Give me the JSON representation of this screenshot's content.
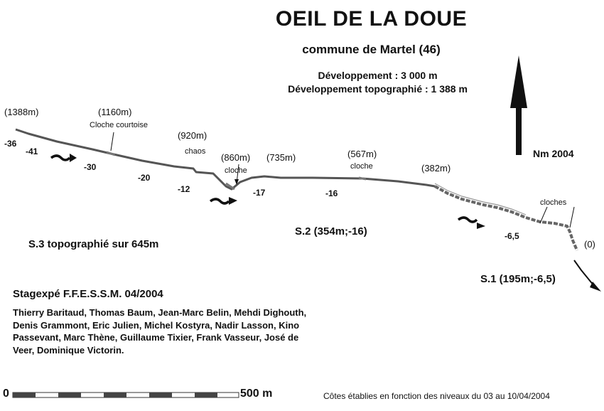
{
  "title": "OEIL DE LA DOUE",
  "subtitle": "commune de Martel (46)",
  "stats": {
    "line1": "Développement : 3 000 m",
    "line2": "Développement topographié : 1 388 m"
  },
  "north_label": "Nm 2004",
  "distances": [
    "(1388m)",
    "(1160m)",
    "(920m)",
    "(860m)",
    "(735m)",
    "(567m)",
    "(382m)",
    "(0)"
  ],
  "notes": {
    "cloche_courtoise": "Cloche courtoise",
    "chaos": "chaos",
    "cloche_860": "cloche",
    "cloche_567": "cloche",
    "cloches": "cloches"
  },
  "depths": [
    "-36",
    "-41",
    "-30",
    "-20",
    "-12",
    "-17",
    "-16",
    "-6,5"
  ],
  "sumps": {
    "s3": "S.3 topographié sur 645m",
    "s2": "S.2 (354m;-16)",
    "s1": "S.1 (195m;-6,5)"
  },
  "team": {
    "title": "Stagexpé F.F.E.S.S.M. 04/2004",
    "members": "Thierry Baritaud, Thomas Baum, Jean-Marc Belin, Mehdi Dighouth, Denis Grammont, Eric Julien, Michel Kostyra, Nadir Lasson, Kino Passevant, Marc Thène, Guillaume Tixier, Frank Vasseur, José de Veer, Dominique Victorin."
  },
  "scale": {
    "start": "0",
    "end": "500 m"
  },
  "footnote": "Côtes établies en fonction des niveaux du 03 au 10/04/2004",
  "colors": {
    "ink": "#111111",
    "gallery": "#555555",
    "gallery_fill": "#bbbbbb"
  }
}
